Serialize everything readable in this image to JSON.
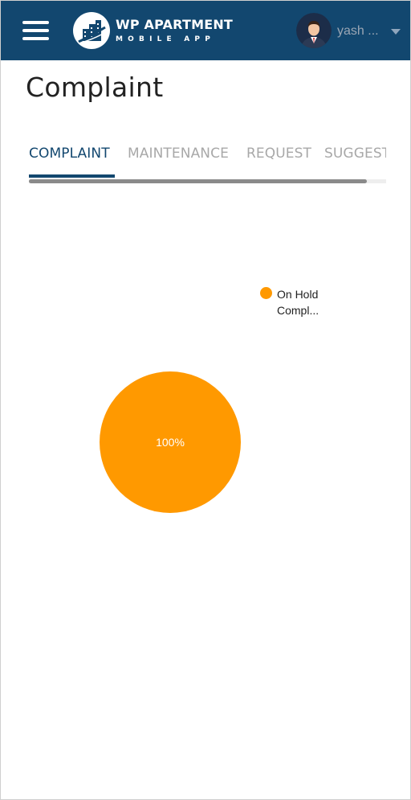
{
  "header": {
    "brand_color": "#12476f",
    "menu_icon": "hamburger-menu-icon",
    "logo": {
      "title": "WP APARTMENT",
      "subtitle": "MOBILE APP",
      "icon": "apartment-building-logo-icon"
    },
    "user": {
      "name": "yash ...",
      "avatar_icon": "user-avatar",
      "dropdown_icon": "caret-down-icon"
    }
  },
  "page": {
    "title": "Complaint"
  },
  "tabs": [
    {
      "label": "COMPLAINT",
      "active": true
    },
    {
      "label": "MAINTENANCE",
      "active": false
    },
    {
      "label": "REQUEST",
      "active": false
    },
    {
      "label": "SUGGESTION",
      "active": false
    }
  ],
  "chart_data": {
    "type": "pie",
    "categories": [
      "On Hold Compl..."
    ],
    "values": [
      100
    ],
    "slice_labels": [
      "100%"
    ],
    "colors": [
      "#ff9900"
    ],
    "legend": {
      "position": "top-right",
      "entries": [
        {
          "line1": "On Hold",
          "line2": "Compl...",
          "color": "#ff9900"
        }
      ]
    }
  }
}
